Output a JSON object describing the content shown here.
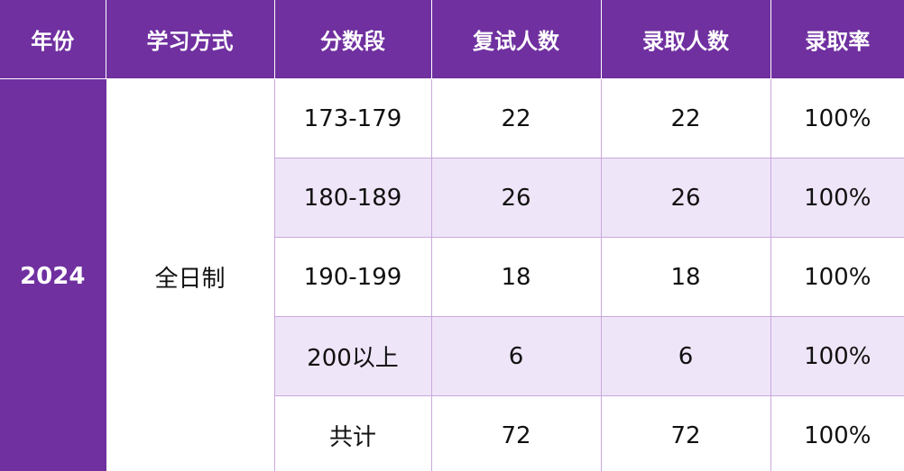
{
  "table": {
    "headers": [
      "年份",
      "学习方式",
      "分数段",
      "复试人数",
      "录取人数",
      "录取率"
    ],
    "year": "2024",
    "mode": "全日制",
    "rows": [
      {
        "range": "173-179",
        "retest": "22",
        "admitted": "22",
        "rate": "100%"
      },
      {
        "range": "180-189",
        "retest": "26",
        "admitted": "26",
        "rate": "100%"
      },
      {
        "range": "190-199",
        "retest": "18",
        "admitted": "18",
        "rate": "100%"
      },
      {
        "range": "200以上",
        "retest": "6",
        "admitted": "6",
        "rate": "100%"
      },
      {
        "range": "共计",
        "retest": "72",
        "admitted": "72",
        "rate": "100%"
      }
    ]
  },
  "colors": {
    "header_bg": "#7030a0",
    "alt_row_bg": "#efe5f8",
    "border": "#c9a8dd"
  }
}
